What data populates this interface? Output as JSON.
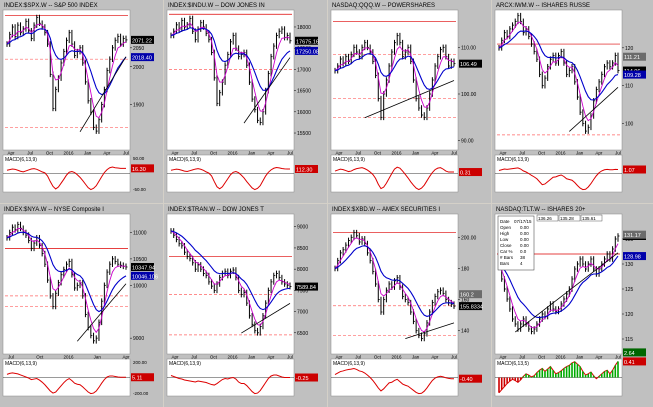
{
  "colors": {
    "frame": "#c0c0c0",
    "bg": "#ffffff",
    "price": "#000000",
    "ma_short": "#cc00cc",
    "ma_long": "#0000cc",
    "resistance": "#dd0000",
    "support": "#ff6666",
    "trend": "#000000",
    "macd": "#dd0000",
    "price_badge": "#000000",
    "ma_badge": "#0000aa",
    "macd_badge": "#cc0000"
  },
  "chart_data": [
    {
      "type": "line",
      "symbol": "INDEX:$SPX.W",
      "title": "INDEX:$SPX.W -- S&P 500 INDEX",
      "ylim": [
        1780,
        2150
      ],
      "y_ticks": [
        "2050",
        "2000",
        "1900"
      ],
      "x_ticks": [
        "Apr",
        "Jul",
        "Oct",
        "2016",
        "Jan",
        "Apr",
        "Jul"
      ],
      "series": [
        {
          "values": [
            2060,
            2085,
            2105,
            2080,
            2110,
            2090,
            2100,
            2120,
            2095,
            2075,
            2110,
            2130,
            2115,
            2105,
            2090,
            2060,
            1980,
            1890,
            1940,
            1970,
            2010,
            2040,
            2070,
            2090,
            2060,
            2030,
            2040,
            2050,
            2010,
            1960,
            1910,
            1880,
            1840,
            1830,
            1860,
            1900,
            1940,
            1990,
            2020,
            2050,
            2070,
            2080,
            2060,
            2075,
            2071
          ]
        }
      ],
      "price_label": "2071.22",
      "ma_label": "2018.40",
      "hlines": [
        2135,
        2020,
        1840
      ],
      "macd_label": "16.30",
      "macd_title": "MACD(6,13,9)",
      "macd_ticks": [
        "50.00",
        "-50.00"
      ],
      "macd": [
        10,
        12,
        14,
        13,
        10,
        7,
        5,
        8,
        11,
        14,
        15,
        13,
        9,
        5,
        2,
        -8,
        -25,
        -40,
        -48,
        -42,
        -30,
        -18,
        -5,
        4,
        6,
        3,
        -4,
        -12,
        -22,
        -33,
        -44,
        -50,
        -46,
        -38,
        -24,
        -10,
        3,
        12,
        18,
        20,
        18,
        17,
        16,
        16,
        16
      ]
    },
    {
      "type": "line",
      "symbol": "INDEX:$INDU.W",
      "title": "INDEX:$INDU.W -- DOW JONES IN",
      "ylim": [
        15100,
        18400
      ],
      "y_ticks": [
        "18000",
        "17500",
        "17000",
        "16500",
        "16000",
        "15500"
      ],
      "x_ticks": [
        "Apr",
        "Jul",
        "Oct",
        "2016",
        "Jan",
        "Apr",
        "Jul"
      ],
      "series": [
        {
          "values": [
            17800,
            17900,
            18050,
            17950,
            18150,
            18000,
            18050,
            18200,
            17900,
            17700,
            17950,
            18100,
            18000,
            17850,
            17700,
            17400,
            16800,
            16200,
            16450,
            16700,
            17100,
            17350,
            17650,
            17800,
            17500,
            17300,
            17350,
            17400,
            17100,
            16700,
            16300,
            16050,
            15800,
            15750,
            16000,
            16500,
            16900,
            17300,
            17550,
            17800,
            17900,
            17950,
            17750,
            17800,
            17675
          ]
        }
      ],
      "price_label": "17675.16",
      "ma_label": "17250.08",
      "hlines": [
        18300,
        17000
      ],
      "macd_label": "112.30",
      "macd_title": "MACD(6,13,9)",
      "macd_ticks": [],
      "macd": [
        80,
        95,
        110,
        100,
        80,
        60,
        50,
        70,
        90,
        110,
        120,
        105,
        80,
        40,
        10,
        -60,
        -200,
        -330,
        -380,
        -330,
        -230,
        -130,
        -30,
        30,
        50,
        20,
        -40,
        -110,
        -200,
        -280,
        -360,
        -400,
        -370,
        -300,
        -180,
        -60,
        30,
        90,
        130,
        150,
        140,
        125,
        115,
        112,
        112
      ]
    },
    {
      "type": "line",
      "symbol": "NASDAQ:QQQ.W",
      "title": "NASDAQ:QQQ.W -- POWERSHARES",
      "ylim": [
        88,
        118
      ],
      "y_ticks": [
        "110.00",
        "100.00",
        "90.00"
      ],
      "x_ticks": [
        "Apr",
        "Jul",
        "Oct",
        "2016",
        "Jan",
        "Apr",
        "Jul"
      ],
      "series": [
        {
          "values": [
            105,
            106,
            107.5,
            106.5,
            108,
            107,
            108.5,
            110,
            109,
            108,
            110,
            111,
            110,
            109,
            107,
            104,
            99,
            95,
            100,
            103,
            106,
            109,
            111,
            112.5,
            111,
            108,
            109,
            110,
            107,
            103,
            99,
            97,
            95.5,
            95,
            97,
            100,
            103,
            106,
            108,
            109.5,
            110,
            108,
            106,
            107,
            106.5
          ]
        }
      ],
      "price_label": "106.49",
      "ma_label": "",
      "hlines": [
        115.5,
        108.5,
        99,
        95
      ],
      "macd_label": "0.31",
      "macd_title": "MACD(6,13,9)",
      "macd_ticks": [],
      "macd": [
        0.5,
        0.7,
        0.9,
        0.8,
        0.6,
        0.4,
        0.5,
        0.8,
        1.0,
        1.1,
        1.2,
        1.0,
        0.7,
        0.3,
        -0.2,
        -1.0,
        -2.2,
        -3.1,
        -2.8,
        -2.0,
        -1.0,
        0.0,
        0.9,
        1.3,
        1.1,
        0.5,
        -0.2,
        -0.9,
        -1.7,
        -2.4,
        -3.0,
        -3.3,
        -3.0,
        -2.4,
        -1.5,
        -0.6,
        0.2,
        0.8,
        1.1,
        1.2,
        0.9,
        0.5,
        0.3,
        0.3,
        0.3
      ]
    },
    {
      "type": "line",
      "symbol": "ARCX:IWM.W",
      "title": "ARCX:IWM.W -- ISHARES RUSSE",
      "ylim": [
        93,
        130
      ],
      "y_ticks": [
        "120",
        "110",
        "100"
      ],
      "x_ticks": [
        "Apr",
        "Jul",
        "Oct",
        "2016",
        "Jan",
        "Apr",
        "Jul"
      ],
      "series": [
        {
          "values": [
            120,
            122,
            124,
            123,
            125,
            126,
            127,
            128.5,
            127,
            124,
            125,
            123,
            121,
            119,
            117,
            113,
            110,
            112,
            115,
            117,
            118,
            116,
            118,
            119,
            116,
            113,
            114,
            115,
            111,
            107,
            103,
            100,
            98,
            99,
            102,
            106,
            109,
            111,
            113,
            115,
            116,
            115,
            116,
            118,
            114
          ]
        }
      ],
      "price_label": "114.06",
      "ma_label": "109.28",
      "extra_label": "111.21",
      "hlines": [
        121,
        97
      ],
      "macd_label": "1.07",
      "macd_title": "MACD(6,13,9)",
      "macd_ticks": [],
      "macd": [
        0.8,
        1.0,
        1.2,
        1.1,
        1.2,
        1.3,
        1.4,
        1.5,
        1.2,
        0.7,
        0.4,
        0.0,
        -0.5,
        -0.9,
        -1.4,
        -2.2,
        -3.0,
        -2.8,
        -2.2,
        -1.6,
        -1.0,
        -0.9,
        -0.6,
        -0.4,
        -0.8,
        -1.4,
        -1.6,
        -1.8,
        -2.4,
        -3.2,
        -3.9,
        -4.3,
        -4.2,
        -3.6,
        -2.7,
        -1.6,
        -0.6,
        0.2,
        0.7,
        1.0,
        1.1,
        1.0,
        1.0,
        1.1,
        1.07
      ]
    },
    {
      "type": "line",
      "symbol": "INDEX:$NYA.W",
      "title": "INDEX:$NYA.W -- NYSE Composite I",
      "ylim": [
        8700,
        11350
      ],
      "y_ticks": [
        "11000",
        "10500",
        "10000",
        "9000"
      ],
      "x_ticks": [
        "Jul",
        "Oct",
        "2016",
        "Jan",
        "Apr"
      ],
      "series": [
        {
          "values": [
            10900,
            11000,
            11100,
            11050,
            11150,
            11080,
            11000,
            10950,
            10850,
            10700,
            10800,
            10900,
            10750,
            10600,
            10400,
            10100,
            9800,
            9600,
            9850,
            10050,
            10200,
            10300,
            10400,
            10450,
            10200,
            9950,
            10000,
            10050,
            9800,
            9450,
            9200,
            9050,
            8950,
            9000,
            9300,
            9700,
            10000,
            10250,
            10400,
            10500,
            10450,
            10400,
            10380,
            10360,
            10347
          ]
        }
      ],
      "price_label": "10347.94",
      "ma_label": "10046.106",
      "hlines": [
        10700,
        9800,
        9600
      ],
      "macd_label": "5.11",
      "macd_title": "MACD(6,13,9)",
      "macd_ticks": [
        "200.00",
        "-200.00"
      ],
      "macd": [
        60,
        80,
        90,
        80,
        70,
        50,
        30,
        10,
        -10,
        -40,
        -30,
        -20,
        -50,
        -90,
        -140,
        -200,
        -260,
        -300,
        -280,
        -220,
        -160,
        -100,
        -50,
        -20,
        -60,
        -110,
        -130,
        -140,
        -180,
        -230,
        -280,
        -310,
        -300,
        -260,
        -190,
        -110,
        -40,
        10,
        30,
        30,
        20,
        10,
        5,
        5,
        5
      ]
    },
    {
      "type": "line",
      "symbol": "INDEX:$TRAN.W",
      "title": "INDEX:$TRAN.W -- DOW JONES T",
      "ylim": [
        6000,
        9300
      ],
      "y_ticks": [
        "9000",
        "8500",
        "8000",
        "7500",
        "7000",
        "6500"
      ],
      "x_ticks": [
        "Apr",
        "Jul",
        "Oct",
        "2016",
        "Jan",
        "Apr",
        "Jul"
      ],
      "series": [
        {
          "values": [
            8900,
            8800,
            8700,
            8600,
            8550,
            8400,
            8300,
            8250,
            8150,
            8000,
            8100,
            8000,
            7900,
            7850,
            7700,
            7600,
            7500,
            7650,
            7800,
            7900,
            7950,
            7850,
            7950,
            7980,
            7800,
            7500,
            7400,
            7450,
            7200,
            6900,
            6700,
            6550,
            6500,
            6650,
            6900,
            7200,
            7500,
            7700,
            7850,
            7900,
            7800,
            7700,
            7650,
            7620,
            7589
          ]
        }
      ],
      "price_label": "7589.84",
      "ma_label": "",
      "hlines": [
        8300,
        7400,
        6450
      ],
      "macd_label": "-0.25",
      "macd_title": "MACD(6,13,9)",
      "macd_ticks": [],
      "macd": [
        40,
        20,
        0,
        -20,
        -30,
        -50,
        -60,
        -70,
        -80,
        -90,
        -70,
        -80,
        -90,
        -100,
        -120,
        -140,
        -150,
        -120,
        -80,
        -40,
        -20,
        -30,
        -10,
        0,
        -30,
        -90,
        -120,
        -120,
        -160,
        -220,
        -280,
        -320,
        -310,
        -260,
        -180,
        -100,
        -20,
        30,
        50,
        50,
        30,
        10,
        0,
        -1,
        -0.25
      ]
    },
    {
      "type": "line",
      "symbol": "INDEX:$XBD.W",
      "title": "INDEX:$XBD.W -- AMEX SECURITIES I",
      "ylim": [
        125,
        215
      ],
      "y_ticks": [
        "200.00",
        "180",
        "160",
        "140"
      ],
      "x_ticks": [
        "Apr",
        "Jul",
        "Oct",
        "2016",
        "Jan",
        "Apr",
        "Jul"
      ],
      "series": [
        {
          "values": [
            180,
            185,
            190,
            192,
            195,
            198,
            200,
            203,
            201,
            197,
            199,
            196,
            190,
            185,
            178,
            170,
            160,
            152,
            160,
            166,
            170,
            168,
            172,
            174,
            168,
            162,
            160,
            158,
            152,
            146,
            140,
            137,
            135,
            138,
            145,
            152,
            158,
            162,
            165,
            166,
            164,
            160,
            158,
            157,
            155.8
          ]
        }
      ],
      "price_label": "155.8334",
      "ma_label": "",
      "extra_label": "160.2",
      "hlines": [
        203,
        156,
        137
      ],
      "macd_label": "-0.40",
      "macd_title": "MACD(6,13,9)",
      "macd_ticks": [],
      "macd": [
        1.0,
        1.5,
        2.0,
        2.2,
        2.5,
        2.7,
        2.8,
        3.0,
        2.7,
        2.2,
        2.0,
        1.5,
        0.8,
        0.0,
        -1.0,
        -2.2,
        -3.5,
        -4.5,
        -3.8,
        -2.8,
        -1.8,
        -1.6,
        -1.0,
        -0.6,
        -1.4,
        -2.2,
        -2.6,
        -2.9,
        -3.6,
        -4.3,
        -5.0,
        -5.4,
        -5.3,
        -4.6,
        -3.5,
        -2.2,
        -1.0,
        -0.2,
        0.2,
        0.4,
        0.2,
        -0.1,
        -0.3,
        -0.4,
        -0.4
      ]
    },
    {
      "type": "line",
      "symbol": "NASDAQ:TLT.W",
      "title": "NASDAQ:TLT.W -- ISHARES 20+",
      "ylim": [
        112,
        140
      ],
      "y_ticks": [
        "135",
        "130",
        "125",
        "120",
        "115"
      ],
      "x_ticks": [
        "Apr",
        "Jul",
        "Oct",
        "2016",
        "Jan",
        "Apr",
        "Jul"
      ],
      "series": [
        {
          "values": [
            130,
            127,
            125,
            123,
            121,
            119,
            118,
            117,
            118,
            119,
            118,
            117,
            116.5,
            117,
            118,
            119,
            120,
            119.5,
            121,
            122,
            121,
            120.5,
            121,
            122,
            123,
            124,
            125,
            127,
            129,
            130,
            131,
            130,
            129,
            130,
            131,
            129,
            128,
            129,
            130,
            131,
            132,
            131,
            133,
            135,
            135.6
          ]
        }
      ],
      "price_label": "135.61",
      "ma_label": "128.98",
      "extra_label": "131.17",
      "hlines": [
        132
      ],
      "info_panel": {
        "date_label": "Date",
        "date": "07/17/15",
        "rows": [
          {
            "label": "Open",
            "value": "0.00"
          },
          {
            "label": "High",
            "value": "0.00"
          },
          {
            "label": "Low",
            "value": "0.00"
          },
          {
            "label": "Close",
            "value": "0.00"
          },
          {
            "label": "Car %",
            "value": "0.0"
          },
          {
            "label": "# Bars",
            "value": "38"
          },
          {
            "label": "Bars",
            "value": "4"
          }
        ],
        "header_values": [
          "136.26",
          "135.28",
          "135.61"
        ]
      },
      "macd_label": "0.41",
      "macd_label_2": "2.64",
      "macd_title": "MACD(6,13,5)",
      "macd_ticks": [],
      "macd": [
        -2.5,
        -2.0,
        -1.5,
        -1.0,
        -0.6,
        -0.3,
        -0.5,
        -0.8,
        -0.4,
        0.2,
        0.6,
        0.4,
        0.1,
        0.3,
        0.8,
        1.2,
        1.5,
        1.0,
        1.4,
        1.8,
        1.2,
        0.6,
        0.8,
        1.1,
        1.5,
        1.8,
        2.0,
        2.4,
        2.6,
        2.2,
        1.8,
        1.0,
        0.4,
        0.6,
        0.9,
        0.3,
        -0.2,
        0.2,
        0.6,
        1.0,
        1.2,
        0.6,
        1.2,
        2.0,
        2.64
      ]
    }
  ]
}
